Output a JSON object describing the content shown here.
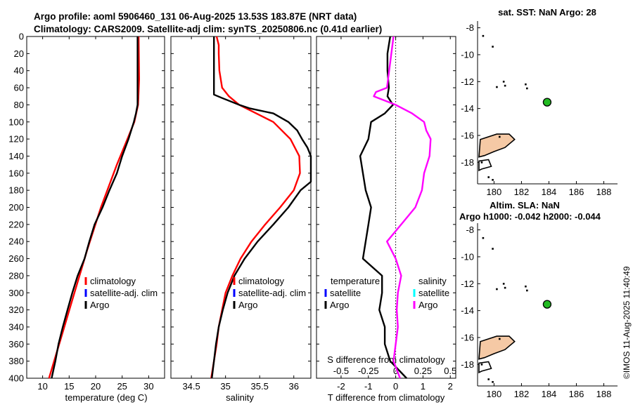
{
  "header": {
    "line1": "Argo profile: aoml 5906460_131 06-Aug-2025 13.53S 183.87E (NRT data)",
    "line2": "Climatology: CARS2009. Satellite-adj clim: synTS_20250806.nc (0.41d earlier)"
  },
  "side_label": "©IMOS 11-Aug-2025 11:40:49",
  "colors": {
    "climatology": "#ff0000",
    "satellite": "#0000ff",
    "argo": "#000000",
    "salinity_diff": "#ff00ff",
    "satellite_salinity": "#00ffff",
    "land": "#f5c9a5",
    "marker": "#22bb22"
  },
  "chart_data": [
    {
      "type": "line",
      "title": "",
      "xlabel": "temperature (deg C)",
      "ylabel": "",
      "xlim": [
        7,
        33
      ],
      "ylim": [
        0,
        400
      ],
      "xticks": [
        "10",
        "15",
        "20",
        "25",
        "30"
      ],
      "yticks": [
        "0",
        "20",
        "40",
        "60",
        "80",
        "100",
        "120",
        "140",
        "160",
        "180",
        "200",
        "220",
        "240",
        "260",
        "280",
        "300",
        "320",
        "340",
        "360",
        "380",
        "400"
      ],
      "legend": [
        "climatology",
        "satellite-adj. clim",
        "Argo"
      ],
      "legend_position": "lower-right",
      "series": [
        {
          "name": "climatology",
          "depth": [
            0,
            50,
            80,
            100,
            120,
            150,
            200,
            250,
            300,
            350,
            400
          ],
          "values": [
            28.1,
            28.2,
            28.0,
            27.3,
            26.0,
            24.0,
            21.0,
            18.4,
            16.0,
            13.6,
            11.2
          ]
        },
        {
          "name": "Argo",
          "depth": [
            0,
            20,
            40,
            60,
            80,
            90,
            100,
            120,
            140,
            160,
            180,
            200,
            220,
            240,
            260,
            280,
            300,
            320,
            340,
            360,
            380,
            400
          ],
          "values": [
            27.9,
            27.9,
            27.9,
            27.9,
            27.9,
            27.6,
            27.2,
            26.2,
            25.0,
            24.0,
            22.6,
            21.3,
            19.8,
            18.8,
            17.9,
            16.6,
            15.6,
            14.7,
            13.8,
            13.0,
            12.4,
            11.7
          ]
        }
      ]
    },
    {
      "type": "line",
      "title": "",
      "xlabel": "salinity",
      "ylabel": "",
      "xlim": [
        34.2,
        36.25
      ],
      "ylim": [
        0,
        400
      ],
      "xticks": [
        "34.5",
        "35",
        "35.5",
        "36"
      ],
      "legend": [
        "climatology",
        "satellite-adj. clim",
        "Argo"
      ],
      "legend_position": "lower-right",
      "series": [
        {
          "name": "climatology",
          "depth": [
            0,
            10,
            20,
            40,
            60,
            70,
            80,
            90,
            100,
            120,
            140,
            160,
            180,
            200,
            220,
            240,
            260,
            280,
            300,
            320,
            340,
            360,
            380,
            400
          ],
          "values": [
            34.87,
            34.9,
            34.9,
            34.91,
            34.95,
            35.05,
            35.2,
            35.45,
            35.7,
            35.95,
            36.08,
            36.09,
            36.0,
            35.8,
            35.58,
            35.38,
            35.22,
            35.1,
            35.0,
            34.95,
            34.9,
            34.87,
            34.83,
            34.79
          ]
        },
        {
          "name": "Argo",
          "depth": [
            0,
            30,
            60,
            68,
            72,
            80,
            84,
            90,
            100,
            110,
            120,
            130,
            140,
            150,
            160,
            170,
            180,
            200,
            220,
            240,
            260,
            280,
            300,
            320,
            340,
            360,
            380,
            400
          ],
          "values": [
            34.83,
            34.83,
            34.83,
            34.83,
            34.95,
            35.2,
            35.35,
            35.7,
            35.92,
            36.05,
            36.12,
            36.2,
            36.25,
            36.25,
            36.25,
            36.25,
            36.1,
            35.92,
            35.7,
            35.47,
            35.28,
            35.13,
            35.03,
            34.96,
            34.9,
            34.86,
            34.83,
            34.8
          ]
        }
      ]
    },
    {
      "type": "line",
      "title": "",
      "xlabel": "T difference from climatology",
      "xlabel2": "S difference from climatology",
      "ylabel": "",
      "xlim": [
        -2.9,
        2.2
      ],
      "ylim": [
        0,
        400
      ],
      "xticks": [
        "-2",
        "-1",
        "0",
        "1",
        "2"
      ],
      "xticks_top": [
        "-0.5",
        "-0.25",
        "0",
        "0.25",
        "0.5"
      ],
      "legend_temperature": [
        "temperature",
        "satellite",
        "Argo"
      ],
      "legend_salinity": [
        "salinity",
        "satellite",
        "Argo"
      ],
      "legend_position": "lower",
      "series": [
        {
          "name": "temperature Argo",
          "depth": [
            0,
            20,
            40,
            60,
            70,
            80,
            90,
            100,
            120,
            140,
            160,
            180,
            200,
            220,
            240,
            260,
            280,
            300,
            320,
            340,
            360,
            380,
            400
          ],
          "values": [
            -0.2,
            -0.3,
            -0.3,
            -0.25,
            -0.3,
            -0.1,
            -0.4,
            -0.9,
            -1.0,
            -1.3,
            -1.2,
            -1.1,
            -0.9,
            -1.0,
            -1.1,
            -1.2,
            -0.5,
            -0.5,
            -0.6,
            -0.4,
            -0.4,
            -0.2,
            0.4
          ]
        },
        {
          "name": "salinity Argo",
          "depth": [
            0,
            20,
            40,
            60,
            65,
            70,
            80,
            90,
            100,
            110,
            120,
            140,
            160,
            180,
            200,
            220,
            240,
            260,
            280,
            300,
            320,
            340,
            360,
            380,
            400
          ],
          "values": [
            -0.02,
            -0.04,
            -0.06,
            -0.08,
            -0.18,
            -0.2,
            0.0,
            0.15,
            0.26,
            0.28,
            0.32,
            0.31,
            0.26,
            0.24,
            0.18,
            0.05,
            -0.08,
            0.0,
            0.05,
            0.02,
            0.01,
            0.02,
            0.0,
            -0.02,
            0.04
          ]
        }
      ]
    },
    {
      "type": "scatter",
      "title": "sat. SST: NaN Argo: 28",
      "xticks": [
        "180",
        "182",
        "184",
        "186",
        "188"
      ],
      "yticks": [
        "-8",
        "-10",
        "-12",
        "-14",
        "-16",
        "-18"
      ],
      "xlim": [
        178.8,
        189
      ],
      "ylim": [
        -19.6,
        -7.5
      ],
      "marker": {
        "lon": 183.87,
        "lat": -13.53
      }
    },
    {
      "type": "scatter",
      "title": "Altim. SLA: NaN",
      "subtitle": "Argo h1000: -0.042 h2000: -0.044",
      "xticks": [
        "180",
        "182",
        "184",
        "186",
        "188"
      ],
      "yticks": [
        "-8",
        "-10",
        "-12",
        "-14",
        "-16",
        "-18"
      ],
      "xlim": [
        178.8,
        189
      ],
      "ylim": [
        -19.6,
        -7.5
      ],
      "marker": {
        "lon": 183.87,
        "lat": -13.53
      }
    }
  ]
}
